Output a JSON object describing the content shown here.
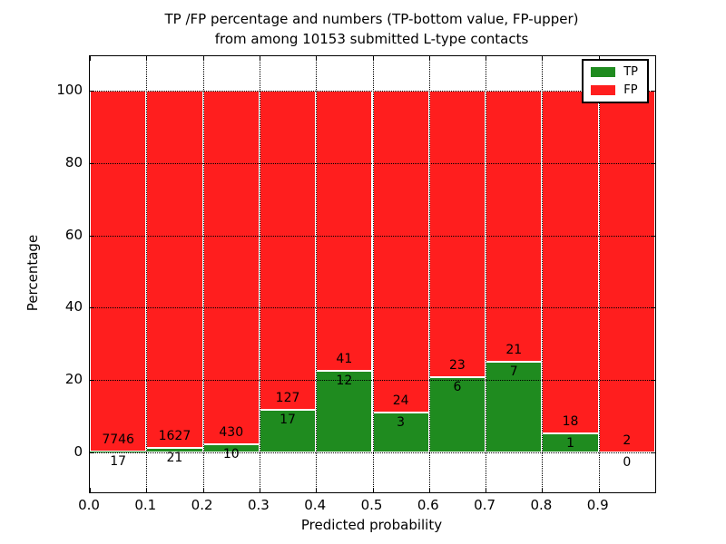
{
  "chart_data": {
    "type": "bar",
    "stacked": true,
    "normalized_to_percent": true,
    "title_line1": "TP /FP percentage and numbers (TP-bottom value, FP-upper)",
    "title_line2": "from among 10153 submitted L-type contacts",
    "total_contacts": 10153,
    "xlabel": "Predicted probability",
    "ylabel": "Percentage",
    "x_tick_labels": [
      "0.0",
      "0.1",
      "0.2",
      "0.3",
      "0.4",
      "0.5",
      "0.6",
      "0.7",
      "0.8",
      "0.9"
    ],
    "y_ticks": [
      0,
      20,
      40,
      60,
      80,
      100
    ],
    "xlim": [
      0.0,
      1.0
    ],
    "ylim": [
      -11,
      110
    ],
    "grid": "dotted black, drawn above bars",
    "legend_position": "upper right",
    "series": [
      {
        "name": "TP",
        "color": "#1f8b1f"
      },
      {
        "name": "FP",
        "color": "#ff1e1e"
      }
    ],
    "bins": [
      {
        "x0": "0.0",
        "x1": "0.1",
        "tp": 17,
        "fp": 7746,
        "tp_percent": 0.22
      },
      {
        "x0": "0.1",
        "x1": "0.2",
        "tp": 21,
        "fp": 1627,
        "tp_percent": 1.27
      },
      {
        "x0": "0.2",
        "x1": "0.3",
        "tp": 10,
        "fp": 430,
        "tp_percent": 2.27
      },
      {
        "x0": "0.3",
        "x1": "0.4",
        "tp": 17,
        "fp": 127,
        "tp_percent": 11.81
      },
      {
        "x0": "0.4",
        "x1": "0.5",
        "tp": 12,
        "fp": 41,
        "tp_percent": 22.64
      },
      {
        "x0": "0.5",
        "x1": "0.6",
        "tp": 3,
        "fp": 24,
        "tp_percent": 11.11
      },
      {
        "x0": "0.6",
        "x1": "0.7",
        "tp": 6,
        "fp": 23,
        "tp_percent": 20.69
      },
      {
        "x0": "0.7",
        "x1": "0.8",
        "tp": 7,
        "fp": 21,
        "tp_percent": 25.0
      },
      {
        "x0": "0.8",
        "x1": "0.9",
        "tp": 1,
        "fp": 18,
        "tp_percent": 5.26
      },
      {
        "x0": "0.9",
        "x1": "1.0",
        "tp": 0,
        "fp": 2,
        "tp_percent": 0.0
      }
    ]
  }
}
